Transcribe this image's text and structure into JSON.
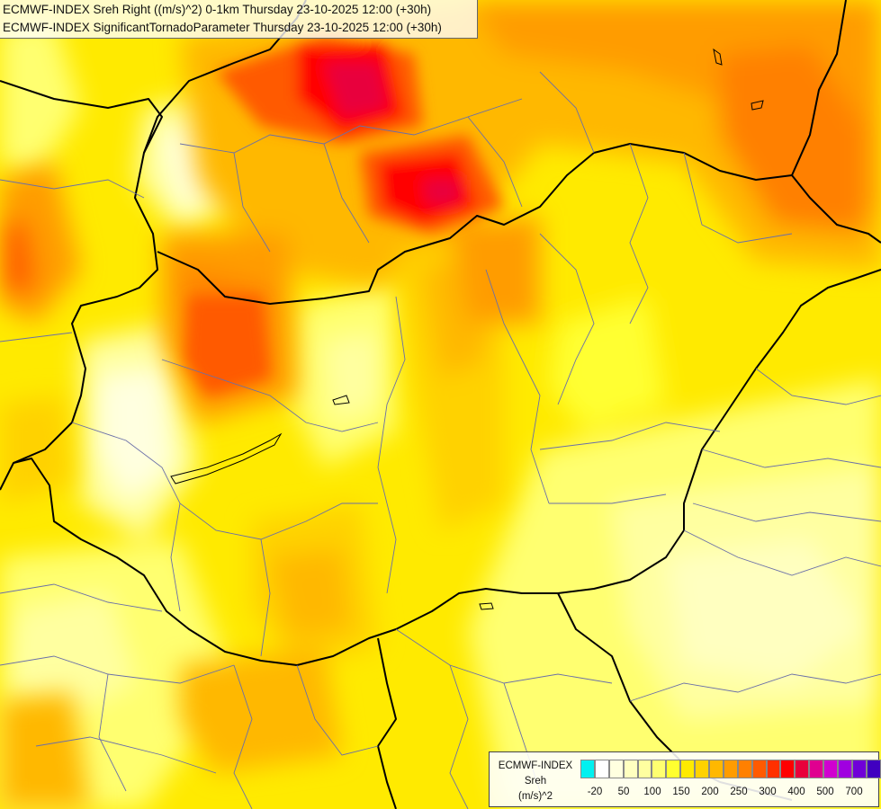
{
  "title": {
    "line1": "ECMWF-INDEX Sreh Right ((m/s)^2) 0-1km Thursday 23-10-2025 12:00 (+30h)",
    "line2": "ECMWF-INDEX SignificantTornadoParameter Thursday 23-10-2025 12:00 (+30h)"
  },
  "legend": {
    "source": "ECMWF-INDEX",
    "variable": "Sreh",
    "unit": "(m/s)^2",
    "colors": [
      "#00f0f0",
      "#ffffff",
      "#ffffe0",
      "#ffffc0",
      "#ffffa0",
      "#ffff70",
      "#ffff30",
      "#ffea00",
      "#ffd200",
      "#ffb800",
      "#ff9c00",
      "#ff8000",
      "#ff5a00",
      "#ff3000",
      "#ff0000",
      "#e8003c",
      "#e00090",
      "#d000d0",
      "#a000e0",
      "#7000d8",
      "#4000c0",
      "#100090"
    ],
    "tick_labels": [
      "-20",
      "50",
      "100",
      "150",
      "200",
      "250",
      "300",
      "400",
      "500",
      "700"
    ]
  },
  "palette": {
    "lightest": "#ffffe0",
    "light": "#ffffa0",
    "yellow": "#ffff30",
    "gold": "#ffea00",
    "orange_light": "#ffd200",
    "orange": "#ffb800",
    "orange_deep": "#ff9c00",
    "dark_orange": "#ff8000",
    "red_orange": "#ff5a00",
    "red": "#ff0000",
    "magenta": "#e8003c"
  }
}
